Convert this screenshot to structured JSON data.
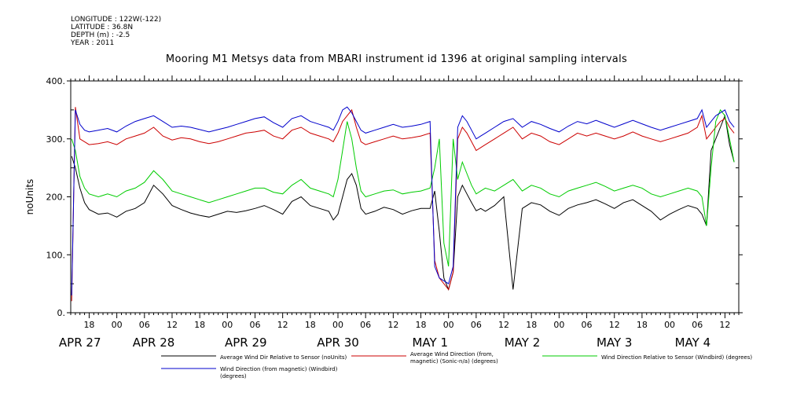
{
  "header": {
    "longitude": "LONGITUDE : 122W(-122)",
    "latitude": "LATITUDE : 36.8N",
    "depth": "DEPTH (m) : -2.5",
    "year": "YEAR : 2011"
  },
  "chart_data": {
    "type": "line",
    "title": "Mooring M1 Metsys data from MBARI instrument id 1396 at original sampling intervals",
    "ylabel": "noUnits",
    "xlabel": "",
    "ylim": [
      0,
      400
    ],
    "y_ticks": [
      "0.",
      "100.",
      "200.",
      "300.",
      "400."
    ],
    "y_tick_values": [
      0,
      100,
      200,
      300,
      400
    ],
    "x_unit": "hours from 2011-04-27 00:00",
    "xlim": [
      14,
      159
    ],
    "x_hour_ticks": [
      {
        "label": "18",
        "x": 18
      },
      {
        "label": "00",
        "x": 24
      },
      {
        "label": "06",
        "x": 30
      },
      {
        "label": "12",
        "x": 36
      },
      {
        "label": "18",
        "x": 42
      },
      {
        "label": "00",
        "x": 48
      },
      {
        "label": "06",
        "x": 54
      },
      {
        "label": "12",
        "x": 60
      },
      {
        "label": "18",
        "x": 66
      },
      {
        "label": "00",
        "x": 72
      },
      {
        "label": "06",
        "x": 78
      },
      {
        "label": "12",
        "x": 84
      },
      {
        "label": "18",
        "x": 90
      },
      {
        "label": "00",
        "x": 96
      },
      {
        "label": "06",
        "x": 102
      },
      {
        "label": "12",
        "x": 108
      },
      {
        "label": "18",
        "x": 114
      },
      {
        "label": "00",
        "x": 120
      },
      {
        "label": "06",
        "x": 126
      },
      {
        "label": "12",
        "x": 132
      },
      {
        "label": "18",
        "x": 138
      },
      {
        "label": "00",
        "x": 144
      },
      {
        "label": "06",
        "x": 150
      },
      {
        "label": "12",
        "x": 156
      }
    ],
    "x_date_labels": [
      {
        "label": "APR 27",
        "x": 16
      },
      {
        "label": "APR 28",
        "x": 32
      },
      {
        "label": "APR 29",
        "x": 52
      },
      {
        "label": "APR 30",
        "x": 72
      },
      {
        "label": "MAY 1",
        "x": 92
      },
      {
        "label": "MAY 2",
        "x": 112
      },
      {
        "label": "MAY 3",
        "x": 132
      },
      {
        "label": "MAY 4",
        "x": 149
      }
    ],
    "grid": false,
    "legend_placement": "bottom",
    "series": [
      {
        "name": "Average Wind Dir Relative to Sensor (noUnits)",
        "color": "#000000",
        "x": [
          14.2,
          15,
          16,
          17,
          18,
          20,
          22,
          24,
          26,
          28,
          30,
          32,
          34,
          36,
          38,
          40,
          42,
          44,
          46,
          48,
          50,
          52,
          54,
          56,
          58,
          60,
          62,
          64,
          66,
          68,
          70,
          71,
          72,
          73,
          74,
          75,
          76,
          77,
          78,
          80,
          82,
          84,
          86,
          88,
          90,
          92,
          93,
          94,
          95,
          96,
          97,
          98,
          99,
          100,
          101,
          102,
          103,
          104,
          106,
          108,
          110,
          112,
          114,
          116,
          118,
          120,
          122,
          124,
          126,
          128,
          130,
          132,
          134,
          136,
          138,
          140,
          142,
          144,
          146,
          148,
          150,
          151,
          152,
          153,
          154,
          155,
          156,
          157,
          158
        ],
        "y": [
          270,
          250,
          215,
          190,
          178,
          170,
          172,
          165,
          175,
          180,
          190,
          220,
          205,
          185,
          178,
          172,
          168,
          165,
          170,
          175,
          173,
          176,
          180,
          185,
          178,
          170,
          192,
          200,
          185,
          180,
          175,
          160,
          170,
          200,
          230,
          240,
          220,
          180,
          170,
          175,
          182,
          178,
          170,
          176,
          180,
          180,
          210,
          140,
          60,
          40,
          70,
          200,
          220,
          205,
          190,
          176,
          180,
          175,
          185,
          200,
          40,
          180,
          190,
          186,
          175,
          168,
          180,
          186,
          190,
          195,
          188,
          180,
          190,
          195,
          185,
          175,
          160,
          170,
          178,
          185,
          180,
          170,
          150,
          280,
          300,
          320,
          340,
          290,
          260
        ]
      },
      {
        "name": "Average Wind Direction (from, magnetic) (Sonic-n/a) (degrees)",
        "color": "#cc0000",
        "x": [
          14.2,
          15,
          16,
          17,
          18,
          20,
          22,
          24,
          26,
          28,
          30,
          32,
          34,
          36,
          38,
          40,
          42,
          44,
          46,
          48,
          50,
          52,
          54,
          56,
          58,
          60,
          62,
          64,
          66,
          68,
          70,
          71,
          72,
          73,
          74,
          75,
          76,
          77,
          78,
          80,
          82,
          84,
          86,
          88,
          90,
          92,
          93,
          94,
          95,
          96,
          97,
          98,
          99,
          100,
          101,
          102,
          103,
          104,
          106,
          108,
          110,
          112,
          114,
          116,
          118,
          120,
          122,
          124,
          126,
          128,
          130,
          132,
          134,
          136,
          138,
          140,
          142,
          144,
          146,
          148,
          150,
          151,
          152,
          153,
          154,
          155,
          156,
          157,
          158
        ],
        "y": [
          20,
          355,
          300,
          295,
          290,
          292,
          295,
          290,
          300,
          305,
          310,
          320,
          305,
          298,
          302,
          300,
          295,
          292,
          295,
          300,
          305,
          310,
          312,
          315,
          305,
          300,
          315,
          320,
          310,
          305,
          300,
          295,
          310,
          330,
          340,
          350,
          320,
          295,
          290,
          295,
          300,
          305,
          300,
          302,
          305,
          310,
          90,
          60,
          50,
          40,
          70,
          300,
          320,
          310,
          295,
          280,
          285,
          290,
          300,
          310,
          320,
          300,
          310,
          305,
          295,
          290,
          300,
          310,
          305,
          310,
          305,
          300,
          305,
          312,
          305,
          300,
          295,
          300,
          305,
          310,
          320,
          340,
          300,
          310,
          320,
          330,
          335,
          320,
          310
        ]
      },
      {
        "name": "Wind Direction Relative to Sensor (Windbird) (degrees)",
        "color": "#00cc00",
        "x": [
          14.2,
          15,
          16,
          17,
          18,
          20,
          22,
          24,
          26,
          28,
          30,
          32,
          34,
          36,
          38,
          40,
          42,
          44,
          46,
          48,
          50,
          52,
          54,
          56,
          58,
          60,
          62,
          64,
          66,
          68,
          70,
          71,
          72,
          73,
          74,
          75,
          76,
          77,
          78,
          80,
          82,
          84,
          86,
          88,
          90,
          92,
          93,
          94,
          95,
          96,
          97,
          98,
          99,
          100,
          101,
          102,
          103,
          104,
          106,
          108,
          110,
          112,
          114,
          116,
          118,
          120,
          122,
          124,
          126,
          128,
          130,
          132,
          134,
          136,
          138,
          140,
          142,
          144,
          146,
          148,
          150,
          151,
          152,
          153,
          154,
          155,
          156,
          157,
          158
        ],
        "y": [
          300,
          280,
          235,
          215,
          205,
          200,
          205,
          200,
          210,
          215,
          225,
          245,
          230,
          210,
          205,
          200,
          195,
          190,
          195,
          200,
          205,
          210,
          215,
          215,
          208,
          205,
          220,
          230,
          215,
          210,
          205,
          200,
          230,
          280,
          330,
          300,
          250,
          210,
          200,
          205,
          210,
          212,
          205,
          208,
          210,
          215,
          250,
          300,
          120,
          80,
          300,
          230,
          260,
          240,
          220,
          205,
          210,
          215,
          210,
          220,
          230,
          210,
          220,
          215,
          205,
          200,
          210,
          215,
          220,
          225,
          218,
          210,
          215,
          220,
          215,
          205,
          200,
          205,
          210,
          215,
          210,
          200,
          150,
          250,
          330,
          350,
          340,
          300,
          260
        ]
      },
      {
        "name": "Wind Direction (from magnetic) (Windbird) (degrees)",
        "color": "#0000cc",
        "x": [
          14.2,
          15,
          16,
          17,
          18,
          20,
          22,
          24,
          26,
          28,
          30,
          32,
          34,
          36,
          38,
          40,
          42,
          44,
          46,
          48,
          50,
          52,
          54,
          56,
          58,
          60,
          62,
          64,
          66,
          68,
          70,
          71,
          72,
          73,
          74,
          75,
          76,
          77,
          78,
          80,
          82,
          84,
          86,
          88,
          90,
          92,
          93,
          94,
          95,
          96,
          97,
          98,
          99,
          100,
          101,
          102,
          103,
          104,
          106,
          108,
          110,
          112,
          114,
          116,
          118,
          120,
          122,
          124,
          126,
          128,
          130,
          132,
          134,
          136,
          138,
          140,
          142,
          144,
          146,
          148,
          150,
          151,
          152,
          153,
          154,
          155,
          156,
          157,
          158
        ],
        "y": [
          30,
          350,
          325,
          315,
          312,
          315,
          318,
          312,
          322,
          330,
          335,
          340,
          330,
          320,
          322,
          320,
          316,
          312,
          316,
          320,
          325,
          330,
          335,
          338,
          328,
          320,
          335,
          340,
          330,
          325,
          320,
          315,
          330,
          350,
          355,
          345,
          330,
          315,
          310,
          315,
          320,
          325,
          320,
          322,
          325,
          330,
          80,
          60,
          55,
          50,
          80,
          320,
          340,
          330,
          315,
          300,
          305,
          310,
          320,
          330,
          335,
          320,
          330,
          325,
          318,
          312,
          322,
          330,
          326,
          332,
          326,
          320,
          326,
          332,
          326,
          320,
          315,
          320,
          325,
          330,
          335,
          350,
          320,
          330,
          340,
          345,
          350,
          330,
          320
        ]
      }
    ]
  }
}
